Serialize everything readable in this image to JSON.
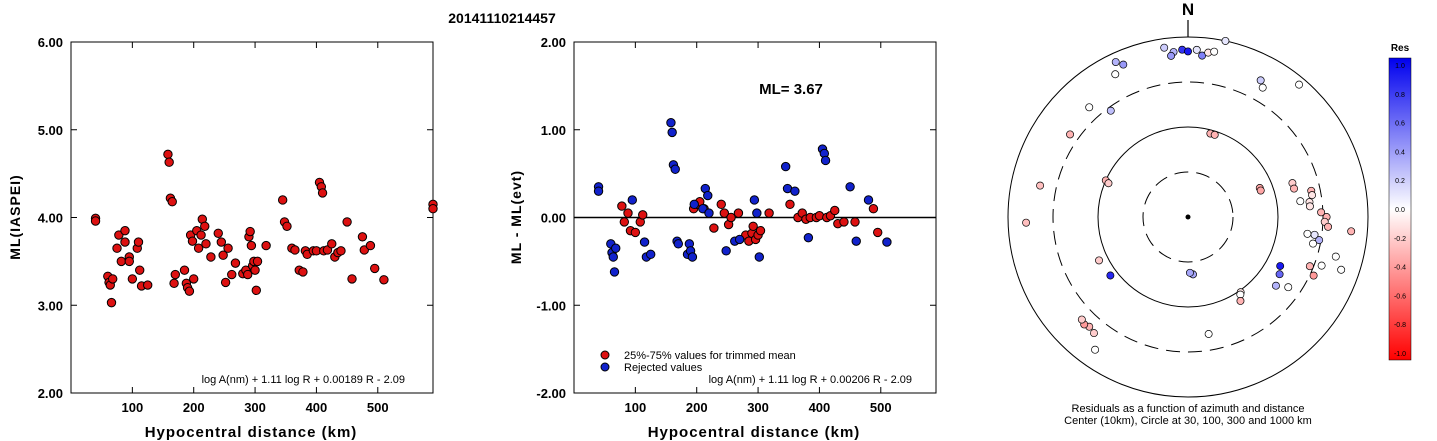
{
  "title": "20141110214457",
  "colors": {
    "accepted": "#dd1111",
    "rejected": "#1122cc",
    "marker_edge": "#000000",
    "res_positive": "#0000ee",
    "res_negative": "#ff0000"
  },
  "chart_data": [
    {
      "id": "ml_vs_distance",
      "type": "scatter",
      "xlabel": "Hypocentral distance (km)",
      "ylabel": "ML(IASPEI)",
      "xlim": [
        0,
        590
      ],
      "ylim": [
        2.0,
        6.0
      ],
      "xticks": [
        100,
        200,
        300,
        400,
        500
      ],
      "xtick_labels": [
        "100",
        "200",
        "300",
        "400",
        "500"
      ],
      "yticks": [
        2.0,
        3.0,
        4.0,
        5.0,
        6.0
      ],
      "ytick_labels": [
        "2.00",
        "3.00",
        "4.00",
        "5.00",
        "6.00"
      ],
      "formula": "log A(nm) + 1.11 log R + 0.00189 R - 2.09",
      "points": [
        [
          40,
          3.99
        ],
        [
          40,
          3.96
        ],
        [
          60,
          3.33
        ],
        [
          62,
          3.26
        ],
        [
          64,
          3.23
        ],
        [
          66,
          3.03
        ],
        [
          68,
          3.3
        ],
        [
          75,
          3.65
        ],
        [
          78,
          3.8
        ],
        [
          82,
          3.5
        ],
        [
          88,
          3.72
        ],
        [
          88,
          3.85
        ],
        [
          95,
          3.55
        ],
        [
          95,
          3.5
        ],
        [
          100,
          3.3
        ],
        [
          108,
          3.65
        ],
        [
          110,
          3.72
        ],
        [
          112,
          3.4
        ],
        [
          115,
          3.22
        ],
        [
          125,
          3.23
        ],
        [
          158,
          4.72
        ],
        [
          160,
          4.63
        ],
        [
          162,
          4.22
        ],
        [
          165,
          4.18
        ],
        [
          168,
          3.25
        ],
        [
          170,
          3.35
        ],
        [
          185,
          3.4
        ],
        [
          188,
          3.25
        ],
        [
          190,
          3.2
        ],
        [
          193,
          3.16
        ],
        [
          195,
          3.8
        ],
        [
          198,
          3.73
        ],
        [
          200,
          3.3
        ],
        [
          205,
          3.85
        ],
        [
          208,
          3.65
        ],
        [
          212,
          3.8
        ],
        [
          214,
          3.98
        ],
        [
          218,
          3.9
        ],
        [
          220,
          3.7
        ],
        [
          228,
          3.55
        ],
        [
          240,
          3.82
        ],
        [
          245,
          3.72
        ],
        [
          248,
          3.57
        ],
        [
          252,
          3.26
        ],
        [
          256,
          3.65
        ],
        [
          262,
          3.35
        ],
        [
          268,
          3.48
        ],
        [
          280,
          3.36
        ],
        [
          285,
          3.4
        ],
        [
          288,
          3.35
        ],
        [
          290,
          3.78
        ],
        [
          292,
          3.84
        ],
        [
          294,
          3.68
        ],
        [
          296,
          3.45
        ],
        [
          298,
          3.5
        ],
        [
          300,
          3.4
        ],
        [
          302,
          3.17
        ],
        [
          304,
          3.5
        ],
        [
          318,
          3.68
        ],
        [
          345,
          4.2
        ],
        [
          348,
          3.95
        ],
        [
          352,
          3.9
        ],
        [
          360,
          3.65
        ],
        [
          365,
          3.63
        ],
        [
          372,
          3.4
        ],
        [
          378,
          3.38
        ],
        [
          382,
          3.62
        ],
        [
          385,
          3.58
        ],
        [
          395,
          3.62
        ],
        [
          400,
          3.62
        ],
        [
          405,
          4.4
        ],
        [
          408,
          4.35
        ],
        [
          410,
          4.28
        ],
        [
          412,
          3.62
        ],
        [
          418,
          3.63
        ],
        [
          425,
          3.7
        ],
        [
          430,
          3.55
        ],
        [
          435,
          3.6
        ],
        [
          440,
          3.62
        ],
        [
          450,
          3.95
        ],
        [
          458,
          3.3
        ],
        [
          475,
          3.78
        ],
        [
          478,
          3.63
        ],
        [
          488,
          3.68
        ],
        [
          495,
          3.42
        ],
        [
          510,
          3.29
        ],
        [
          590,
          4.15
        ],
        [
          590,
          4.1
        ]
      ]
    },
    {
      "id": "residual_vs_distance",
      "type": "scatter",
      "xlabel": "Hypocentral distance (km)",
      "ylabel": "ML - ML(evt)",
      "xlim": [
        0,
        590
      ],
      "ylim": [
        -2.0,
        2.0
      ],
      "xticks": [
        100,
        200,
        300,
        400,
        500
      ],
      "xtick_labels": [
        "100",
        "200",
        "300",
        "400",
        "500"
      ],
      "yticks": [
        -2.0,
        -1.0,
        0.0,
        1.0,
        2.0
      ],
      "ytick_labels": [
        "-2.00",
        "-1.00",
        "0.00",
        "1.00",
        "2.00"
      ],
      "ml_text": "ML= 3.67",
      "formula": "log A(nm) + 1.11 log R + 0.00206 R - 2.09",
      "legend": {
        "position": "bottom-left",
        "accepted": "25%-75% values for trimmed mean",
        "rejected": "Rejected values"
      },
      "accepted": [
        [
          78,
          0.13
        ],
        [
          82,
          -0.05
        ],
        [
          88,
          0.05
        ],
        [
          92,
          -0.15
        ],
        [
          100,
          -0.17
        ],
        [
          108,
          -0.05
        ],
        [
          112,
          0.03
        ],
        [
          195,
          0.1
        ],
        [
          200,
          0.15
        ],
        [
          205,
          0.18
        ],
        [
          212,
          0.1
        ],
        [
          228,
          -0.12
        ],
        [
          240,
          0.15
        ],
        [
          245,
          0.05
        ],
        [
          252,
          -0.08
        ],
        [
          256,
          0.0
        ],
        [
          268,
          0.05
        ],
        [
          280,
          -0.2
        ],
        [
          285,
          -0.27
        ],
        [
          290,
          -0.18
        ],
        [
          292,
          -0.1
        ],
        [
          296,
          -0.25
        ],
        [
          300,
          -0.2
        ],
        [
          304,
          -0.15
        ],
        [
          318,
          0.05
        ],
        [
          352,
          0.15
        ],
        [
          365,
          0.0
        ],
        [
          372,
          0.05
        ],
        [
          378,
          -0.02
        ],
        [
          385,
          0.0
        ],
        [
          395,
          0.0
        ],
        [
          400,
          0.02
        ],
        [
          412,
          0.0
        ],
        [
          418,
          0.02
        ],
        [
          425,
          0.08
        ],
        [
          430,
          -0.07
        ],
        [
          440,
          -0.05
        ],
        [
          458,
          -0.05
        ],
        [
          488,
          0.1
        ],
        [
          495,
          -0.17
        ]
      ],
      "rejected": [
        [
          40,
          0.35
        ],
        [
          40,
          0.3
        ],
        [
          60,
          -0.3
        ],
        [
          62,
          -0.4
        ],
        [
          64,
          -0.45
        ],
        [
          66,
          -0.62
        ],
        [
          68,
          -0.35
        ],
        [
          95,
          0.2
        ],
        [
          115,
          -0.28
        ],
        [
          118,
          -0.45
        ],
        [
          125,
          -0.42
        ],
        [
          158,
          1.08
        ],
        [
          160,
          0.97
        ],
        [
          162,
          0.6
        ],
        [
          165,
          0.55
        ],
        [
          168,
          -0.27
        ],
        [
          170,
          -0.3
        ],
        [
          185,
          -0.42
        ],
        [
          188,
          -0.3
        ],
        [
          190,
          -0.38
        ],
        [
          193,
          -0.45
        ],
        [
          196,
          0.15
        ],
        [
          210,
          0.1
        ],
        [
          214,
          0.33
        ],
        [
          218,
          0.25
        ],
        [
          220,
          0.05
        ],
        [
          248,
          -0.38
        ],
        [
          262,
          -0.27
        ],
        [
          270,
          -0.25
        ],
        [
          294,
          0.2
        ],
        [
          298,
          0.05
        ],
        [
          302,
          -0.45
        ],
        [
          345,
          0.58
        ],
        [
          348,
          0.33
        ],
        [
          360,
          0.3
        ],
        [
          382,
          -0.23
        ],
        [
          405,
          0.78
        ],
        [
          408,
          0.73
        ],
        [
          410,
          0.65
        ],
        [
          450,
          0.35
        ],
        [
          460,
          -0.27
        ],
        [
          480,
          0.2
        ],
        [
          510,
          -0.28
        ]
      ]
    },
    {
      "id": "azimuth_distance_residuals",
      "type": "scatter",
      "north_label": "N",
      "caption_line1": "Residuals as a function of azimuth and distance",
      "caption_line2": "Center (10km), Circle at 30, 100, 300 and 1000 km",
      "rings_km": [
        30,
        100,
        300,
        1000
      ],
      "colorbar": {
        "title": "Res",
        "range": [
          -1.0,
          1.0
        ],
        "tick_labels": [
          "1.0",
          "0.8",
          "0.6",
          "0.4",
          "0.2",
          "0.0",
          "-0.2",
          "-0.4",
          "-0.6",
          "-0.8",
          "-1.0"
        ]
      },
      "stations": [
        [
          -8,
          0.95,
          0.2
        ],
        [
          -5,
          0.92,
          0.3
        ],
        [
          -2,
          0.93,
          0.8
        ],
        [
          0,
          0.92,
          0.9
        ],
        [
          3,
          0.93,
          0.1
        ],
        [
          5,
          0.9,
          0.5
        ],
        [
          7,
          0.92,
          -0.1
        ],
        [
          9,
          0.93,
          0.0
        ],
        [
          12,
          1.0,
          0.1
        ],
        [
          -6,
          0.9,
          0.4
        ],
        [
          -25,
          0.95,
          0.3
        ],
        [
          -27,
          0.89,
          0.0
        ],
        [
          -23,
          0.92,
          0.4
        ],
        [
          28,
          0.86,
          0.2
        ],
        [
          30,
          0.83,
          0.0
        ],
        [
          40,
          0.96,
          0.0
        ],
        [
          -55,
          0.8,
          -0.3
        ],
        [
          -42,
          0.82,
          0.0
        ],
        [
          -36,
          0.73,
          0.25
        ],
        [
          -78,
          0.84,
          -0.25
        ],
        [
          -92,
          0.9,
          -0.25
        ],
        [
          15,
          0.48,
          -0.3
        ],
        [
          18,
          0.48,
          -0.3
        ],
        [
          -66,
          0.5,
          -0.3
        ],
        [
          -67,
          0.48,
          -0.2
        ],
        [
          68,
          0.43,
          -0.35
        ],
        [
          70,
          0.43,
          -0.35
        ],
        [
          72,
          0.61,
          -0.2
        ],
        [
          75,
          0.61,
          -0.3
        ],
        [
          78,
          0.7,
          -0.3
        ],
        [
          80,
          0.7,
          -0.1
        ],
        [
          82,
          0.63,
          0.0
        ],
        [
          83,
          0.68,
          -0.1
        ],
        [
          85,
          0.68,
          -0.1
        ],
        [
          88,
          0.74,
          -0.3
        ],
        [
          90,
          0.77,
          -0.3
        ],
        [
          92,
          0.76,
          -0.2
        ],
        [
          94,
          0.78,
          -0.3
        ],
        [
          95,
          0.91,
          -0.3
        ],
        [
          98,
          0.67,
          0.0
        ],
        [
          98,
          0.71,
          0.1
        ],
        [
          100,
          0.74,
          0.3
        ],
        [
          102,
          0.71,
          0.0
        ],
        [
          110,
          0.79,
          0.0
        ],
        [
          112,
          0.73,
          -0.3
        ],
        [
          105,
          0.85,
          0.0
        ],
        [
          109,
          0.9,
          0.0
        ],
        [
          115,
          0.77,
          -0.4
        ],
        [
          118,
          0.58,
          0.9
        ],
        [
          122,
          0.6,
          0.6
        ],
        [
          128,
          0.62,
          0.3
        ],
        [
          125,
          0.68,
          0.0
        ],
        [
          145,
          0.51,
          -0.1
        ],
        [
          146,
          0.52,
          0.0
        ],
        [
          148,
          0.55,
          -0.3
        ],
        [
          170,
          0.66,
          0.0
        ],
        [
          175,
          0.32,
          0.35
        ],
        [
          178,
          0.31,
          0.35
        ],
        [
          215,
          0.9,
          0.0
        ],
        [
          219,
          0.83,
          -0.2
        ],
        [
          222,
          0.82,
          -0.3
        ],
        [
          224,
          0.83,
          -0.4
        ],
        [
          226,
          0.82,
          -0.2
        ],
        [
          233,
          0.54,
          0.85
        ],
        [
          244,
          0.55,
          -0.2
        ]
      ]
    }
  ]
}
